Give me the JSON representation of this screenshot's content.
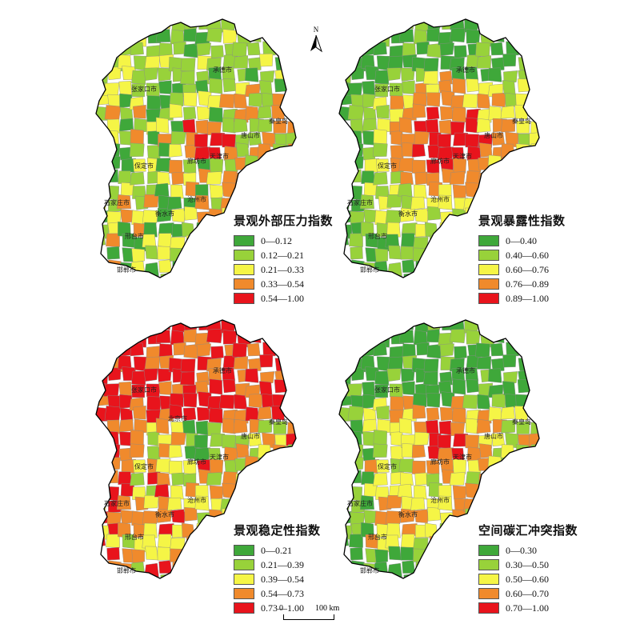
{
  "maps": [
    {
      "legend_title": "景观外部压力指数",
      "classes": [
        {
          "label": "0—0.12",
          "color": "#3fa83a"
        },
        {
          "label": "0.12—0.21",
          "color": "#98d23a"
        },
        {
          "label": "0.21—0.33",
          "color": "#f5f546"
        },
        {
          "label": "0.33—0.54",
          "color": "#f08a2c"
        },
        {
          "label": "0.54—1.00",
          "color": "#e8141c"
        }
      ],
      "cities": [
        {
          "name": "承德市"
        },
        {
          "name": "张家口市"
        },
        {
          "name": "秦皇岛"
        },
        {
          "name": "唐山市"
        },
        {
          "name": "保定市"
        },
        {
          "name": "廊坊市"
        },
        {
          "name": "天津市"
        },
        {
          "name": "沧州市"
        },
        {
          "name": "石家庄市"
        },
        {
          "name": "衡水市"
        },
        {
          "name": "邢台市"
        },
        {
          "name": "邯郸市"
        }
      ],
      "dominant_class": [
        1,
        2,
        0,
        3,
        4
      ]
    },
    {
      "legend_title": "景观暴露性指数",
      "classes": [
        {
          "label": "0—0.40",
          "color": "#3fa83a"
        },
        {
          "label": "0.40—0.60",
          "color": "#98d23a"
        },
        {
          "label": "0.60—0.76",
          "color": "#f5f546"
        },
        {
          "label": "0.76—0.89",
          "color": "#f08a2c"
        },
        {
          "label": "0.89—1.00",
          "color": "#e8141c"
        }
      ],
      "cities": [
        {
          "name": "承德市"
        },
        {
          "name": "张家口市"
        },
        {
          "name": "秦皇岛"
        },
        {
          "name": "唐山市"
        },
        {
          "name": "保定市"
        },
        {
          "name": "廊坊市"
        },
        {
          "name": "天津市"
        },
        {
          "name": "沧州市"
        },
        {
          "name": "石家庄市"
        },
        {
          "name": "衡水市"
        },
        {
          "name": "邢台市"
        },
        {
          "name": "邯郸市"
        }
      ]
    },
    {
      "legend_title": "景观稳定性指数",
      "classes": [
        {
          "label": "0—0.21",
          "color": "#3fa83a"
        },
        {
          "label": "0.21—0.39",
          "color": "#98d23a"
        },
        {
          "label": "0.39—0.54",
          "color": "#f5f546"
        },
        {
          "label": "0.54—0.73",
          "color": "#f08a2c"
        },
        {
          "label": "0.73—1.00",
          "color": "#e8141c"
        }
      ],
      "cities": [
        {
          "name": "承德市"
        },
        {
          "name": "张家口市"
        },
        {
          "name": "北京市"
        },
        {
          "name": "秦皇岛"
        },
        {
          "name": "唐山市"
        },
        {
          "name": "保定市"
        },
        {
          "name": "廊坊市"
        },
        {
          "name": "天津市"
        },
        {
          "name": "沧州市"
        },
        {
          "name": "石家庄市"
        },
        {
          "name": "衡水市"
        },
        {
          "name": "邢台市"
        },
        {
          "name": "邯郸市"
        }
      ]
    },
    {
      "legend_title": "空间碳汇冲突指数",
      "classes": [
        {
          "label": "0—0.30",
          "color": "#3fa83a"
        },
        {
          "label": "0.30—0.50",
          "color": "#98d23a"
        },
        {
          "label": "0.50—0.60",
          "color": "#f5f546"
        },
        {
          "label": "0.60—0.70",
          "color": "#f08a2c"
        },
        {
          "label": "0.70—1.00",
          "color": "#e8141c"
        }
      ],
      "cities": [
        {
          "name": "承德市"
        },
        {
          "name": "张家口市"
        },
        {
          "name": "秦皇岛"
        },
        {
          "name": "唐山市"
        },
        {
          "name": "保定市"
        },
        {
          "name": "廊坊市"
        },
        {
          "name": "天津市"
        },
        {
          "name": "沧州市"
        },
        {
          "name": "石家庄市"
        },
        {
          "name": "衡水市"
        },
        {
          "name": "邢台市"
        },
        {
          "name": "邯郸市"
        }
      ]
    }
  ],
  "north_arrow": {
    "label": "N"
  },
  "scale_bar": {
    "left_label": "0",
    "right_label": "100 km"
  }
}
